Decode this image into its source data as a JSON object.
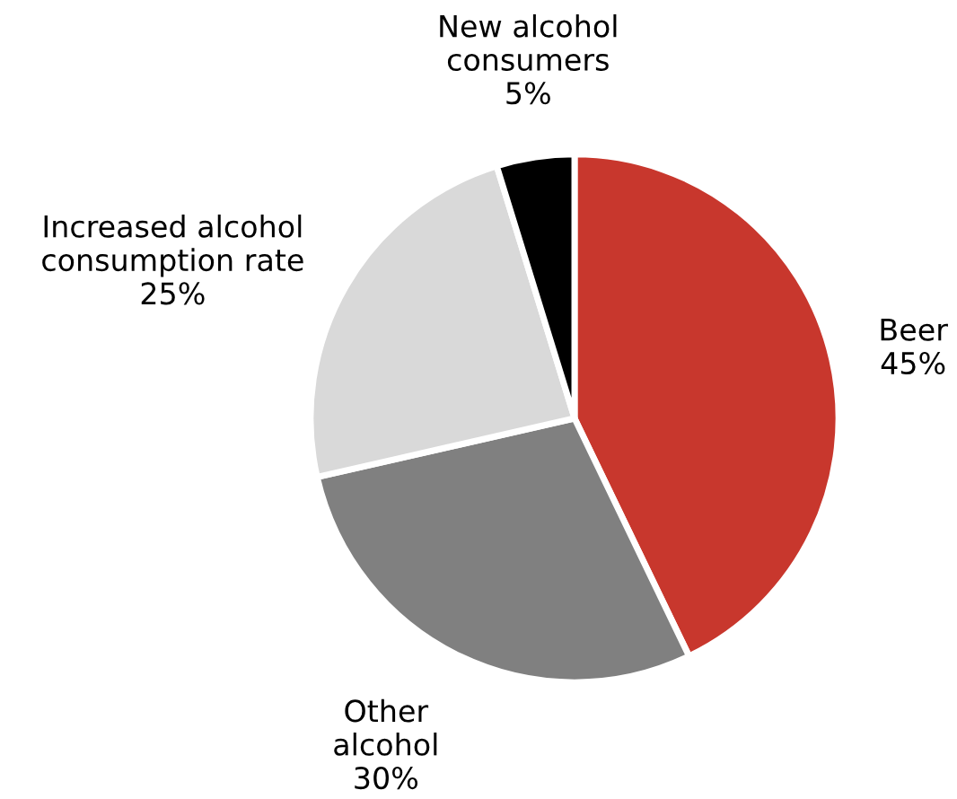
{
  "chart_data": {
    "type": "pie",
    "categories": [
      "Beer",
      "Other\nalcohol",
      "Increased alcohol\nconsumption rate",
      "New alcohol\nconsumers"
    ],
    "values": [
      45,
      30,
      25,
      5
    ],
    "value_labels": [
      "45%",
      "30%",
      "25%",
      "5%"
    ],
    "colors": [
      "#c8372d",
      "#808080",
      "#d9d9d9",
      "#000000"
    ],
    "legend": false
  }
}
